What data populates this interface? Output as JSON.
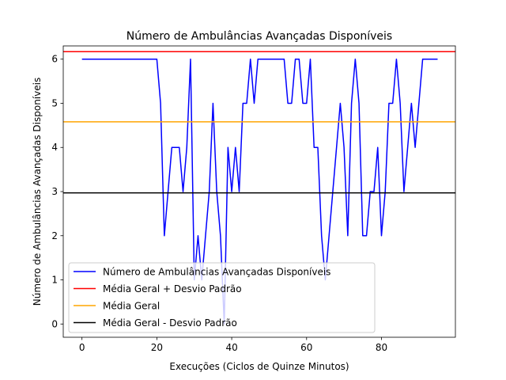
{
  "chart_data": {
    "type": "line",
    "title": "Número de Ambulâncias Avançadas Disponíveis",
    "xlabel": "Execuções (Ciclos de Quinze Minutos)",
    "ylabel": "Número de Ambulâncias Avançadas Disponíveis",
    "xlim": [
      -5,
      99.75
    ],
    "ylim": [
      -0.3,
      6.3
    ],
    "xticks": [
      0,
      20,
      40,
      60,
      80
    ],
    "yticks": [
      0,
      1,
      2,
      3,
      4,
      5,
      6
    ],
    "grid": false,
    "legend_position": "lower-left",
    "series": [
      {
        "name": "Número de Ambulâncias Avançadas Disponíveis",
        "color": "#0000ff",
        "kind": "line",
        "x": [
          0,
          1,
          2,
          3,
          4,
          5,
          6,
          7,
          8,
          9,
          10,
          11,
          12,
          13,
          14,
          15,
          16,
          17,
          18,
          19,
          20,
          21,
          22,
          23,
          24,
          25,
          26,
          27,
          28,
          29,
          30,
          31,
          32,
          33,
          34,
          35,
          36,
          37,
          38,
          39,
          40,
          41,
          42,
          43,
          44,
          45,
          46,
          47,
          48,
          49,
          50,
          51,
          52,
          53,
          54,
          55,
          56,
          57,
          58,
          59,
          60,
          61,
          62,
          63,
          64,
          65,
          66,
          67,
          68,
          69,
          70,
          71,
          72,
          73,
          74,
          75,
          76,
          77,
          78,
          79,
          80,
          81,
          82,
          83,
          84,
          85,
          86,
          87,
          88,
          89,
          90,
          91,
          92,
          93,
          94,
          95
        ],
        "y": [
          6,
          6,
          6,
          6,
          6,
          6,
          6,
          6,
          6,
          6,
          6,
          6,
          6,
          6,
          6,
          6,
          6,
          6,
          6,
          6,
          6,
          5,
          2,
          3,
          4,
          4,
          4,
          3,
          4,
          6,
          1,
          2,
          1,
          2,
          3,
          5,
          3,
          2,
          0,
          4,
          3,
          4,
          3,
          5,
          5,
          6,
          5,
          6,
          6,
          6,
          6,
          6,
          6,
          6,
          6,
          5,
          5,
          6,
          6,
          5,
          5,
          6,
          4,
          4,
          2,
          1,
          2,
          3,
          4,
          5,
          4,
          2,
          5,
          6,
          5,
          2,
          2,
          3,
          3,
          4,
          2,
          3,
          5,
          5,
          6,
          5,
          3,
          4,
          5,
          4,
          5,
          6,
          6,
          6,
          6,
          6
        ]
      },
      {
        "name": "Média Geral + Desvio Padrão",
        "color": "#ff0000",
        "kind": "hline",
        "y": 6.17
      },
      {
        "name": "Média Geral",
        "color": "#ffa500",
        "kind": "hline",
        "y": 4.58
      },
      {
        "name": "Média Geral - Desvio Padrão",
        "color": "#000000",
        "kind": "hline",
        "y": 2.97
      }
    ]
  }
}
